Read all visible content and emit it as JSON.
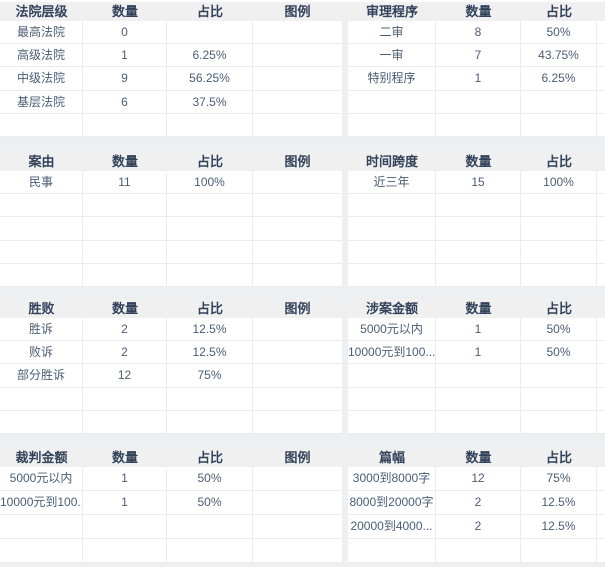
{
  "columns": {
    "count": "数量",
    "ratio": "占比",
    "legend": "图例"
  },
  "colors": {
    "page_background": "#edf0f3",
    "header_background": "#f0f0f0",
    "header_text": "#33425b",
    "cell_text": "#4b5d73",
    "border": "#ececec",
    "table_background": "#ffffff"
  },
  "tables": [
    {
      "name": "court-level",
      "title": "法院层级",
      "row_slots": 5,
      "rows": [
        [
          "最高法院",
          "0",
          ""
        ],
        [
          "高级法院",
          "1",
          "6.25%"
        ],
        [
          "中级法院",
          "9",
          "56.25%"
        ],
        [
          "基层法院",
          "6",
          "37.5%"
        ]
      ]
    },
    {
      "name": "trial-procedure",
      "title": "审理程序",
      "row_slots": 5,
      "rows": [
        [
          "二审",
          "8",
          "50%"
        ],
        [
          "一审",
          "7",
          "43.75%"
        ],
        [
          "特别程序",
          "1",
          "6.25%"
        ]
      ]
    },
    {
      "name": "cause-of-action",
      "title": "案由",
      "row_slots": 5,
      "rows": [
        [
          "民事",
          "11",
          "100%"
        ]
      ]
    },
    {
      "name": "time-span",
      "title": "时间跨度",
      "row_slots": 5,
      "rows": [
        [
          "近三年",
          "15",
          "100%"
        ]
      ]
    },
    {
      "name": "win-loss",
      "title": "胜败",
      "row_slots": 5,
      "rows": [
        [
          "胜诉",
          "2",
          "12.5%"
        ],
        [
          "败诉",
          "2",
          "12.5%"
        ],
        [
          "部分胜诉",
          "12",
          "75%"
        ]
      ]
    },
    {
      "name": "case-amount",
      "title": "涉案金额",
      "row_slots": 5,
      "rows": [
        [
          "5000元以内",
          "1",
          "50%"
        ],
        [
          "10000元到100...",
          "1",
          "50%"
        ]
      ]
    },
    {
      "name": "judgment-amount",
      "title": "裁判金额",
      "row_slots": 4,
      "rows": [
        [
          "5000元以内",
          "1",
          "50%"
        ],
        [
          "10000元到100...",
          "1",
          "50%"
        ]
      ]
    },
    {
      "name": "length",
      "title": "篇幅",
      "row_slots": 4,
      "rows": [
        [
          "3000到8000字",
          "12",
          "75%"
        ],
        [
          "8000到20000字",
          "2",
          "12.5%"
        ],
        [
          "20000到4000...",
          "2",
          "12.5%"
        ]
      ]
    }
  ]
}
